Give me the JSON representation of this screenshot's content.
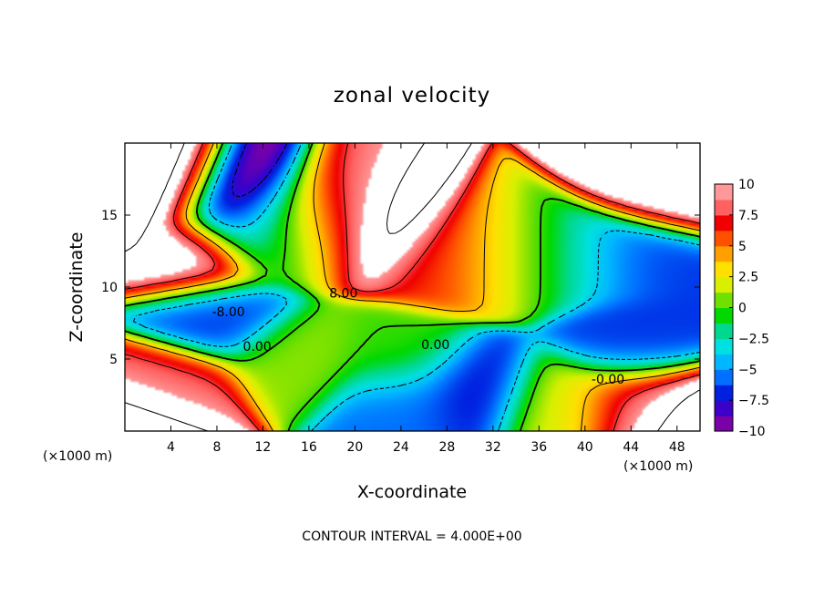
{
  "chart_data": {
    "type": "heatmap",
    "title": "zonal velocity",
    "xlabel": "X-coordinate",
    "ylabel": "Z-coordinate",
    "x_unit_label": "(×1000 m)",
    "z_unit_label": "(×1000 m)",
    "footer": "CONTOUR INTERVAL = 4.000E+00",
    "xlim": [
      0,
      50
    ],
    "ylim": [
      0,
      20
    ],
    "x_ticks": [
      4,
      8,
      12,
      16,
      20,
      24,
      28,
      32,
      36,
      40,
      44,
      48
    ],
    "x_tick_labels": [
      "4",
      "8",
      "12",
      "16",
      "20",
      "24",
      "28",
      "32",
      "36",
      "40",
      "44",
      "48"
    ],
    "y_ticks": [
      5,
      10,
      15
    ],
    "y_tick_labels": [
      "5",
      "10",
      "15"
    ],
    "colorbar": {
      "range": [
        -10,
        10
      ],
      "ticks": [
        10,
        7.5,
        5,
        2.5,
        0,
        -2.5,
        -5,
        -7.5,
        -10
      ],
      "tick_labels": [
        "10",
        "7.5",
        "5",
        "2.5",
        "0",
        "−2.5",
        "−5",
        "−7.5",
        "−10"
      ],
      "colors": [
        "#7b00a8",
        "#3d00c8",
        "#0020e0",
        "#0070ff",
        "#00b8ff",
        "#00e0e0",
        "#00d890",
        "#00d800",
        "#70e000",
        "#d8f000",
        "#ffe000",
        "#ffa000",
        "#ff5000",
        "#f00000",
        "#ff6060",
        "#ff9898"
      ]
    },
    "contour_interval": 4,
    "contour_labels": [
      {
        "text": "8.00",
        "x": 19.0,
        "z": 9.6
      },
      {
        "text": "-8.00",
        "x": 9.0,
        "z": 8.3
      },
      {
        "text": "0.00",
        "x": 11.5,
        "z": 5.9
      },
      {
        "text": "0.00",
        "x": 27.0,
        "z": 6.0
      },
      {
        "text": "-0.00",
        "x": 42.0,
        "z": 3.6
      }
    ],
    "samples": [
      {
        "x": 3,
        "z": 17,
        "u": 14
      },
      {
        "x": 6,
        "z": 12,
        "u": 12
      },
      {
        "x": 10,
        "z": 16,
        "u": -12
      },
      {
        "x": 12,
        "z": 14,
        "u": -6
      },
      {
        "x": 14,
        "z": 14,
        "u": 0
      },
      {
        "x": 16,
        "z": 14,
        "u": 4
      },
      {
        "x": 18,
        "z": 15,
        "u": 9
      },
      {
        "x": 22,
        "z": 14,
        "u": 14
      },
      {
        "x": 28,
        "z": 12,
        "u": 7
      },
      {
        "x": 32,
        "z": 12,
        "u": 3.5
      },
      {
        "x": 36,
        "z": 12,
        "u": 0
      },
      {
        "x": 40,
        "z": 12,
        "u": -3
      },
      {
        "x": 44,
        "z": 12,
        "u": -7
      },
      {
        "x": 47,
        "z": 17,
        "u": 12
      },
      {
        "x": 8,
        "z": 8,
        "u": -7
      },
      {
        "x": 15,
        "z": 5,
        "u": 1
      },
      {
        "x": 24,
        "z": 5,
        "u": 0
      },
      {
        "x": 24,
        "z": 2,
        "u": -6
      },
      {
        "x": 30,
        "z": 3,
        "u": -8
      },
      {
        "x": 44,
        "z": 6,
        "u": -7
      },
      {
        "x": 38,
        "z": 2,
        "u": 2
      },
      {
        "x": 44,
        "z": 2,
        "u": 8
      },
      {
        "x": 48,
        "z": 1,
        "u": 14
      },
      {
        "x": 4,
        "z": 3,
        "u": 8
      },
      {
        "x": 2,
        "z": 1,
        "u": 14
      }
    ]
  }
}
